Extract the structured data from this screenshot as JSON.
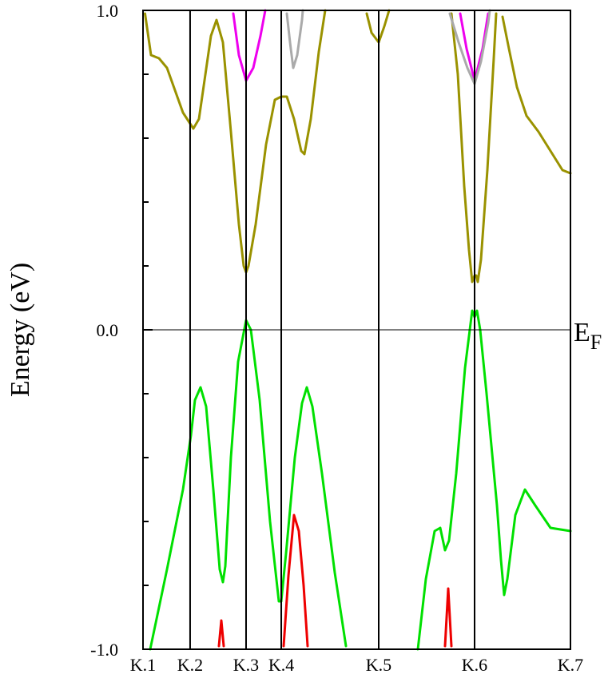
{
  "chart_data": {
    "type": "line",
    "ylabel": "Energy (eV)",
    "ylim": [
      -1.0,
      1.0
    ],
    "yticks": [
      "-1.0",
      "0.0",
      "1.0"
    ],
    "ytick_values": [
      -1.0,
      0.0,
      1.0
    ],
    "yminor_values": [
      -0.8,
      -0.6,
      -0.4,
      -0.2,
      0.2,
      0.4,
      0.6,
      0.8
    ],
    "xlim": [
      0,
      1
    ],
    "kpoints": [
      {
        "label": "K.1",
        "x": 0.0
      },
      {
        "label": "K.2",
        "x": 0.1102
      },
      {
        "label": "K.3",
        "x": 0.2411
      },
      {
        "label": "K.4",
        "x": 0.3234
      },
      {
        "label": "K.5",
        "x": 0.5514
      },
      {
        "label": "K.6",
        "x": 0.7757
      },
      {
        "label": "K.7",
        "x": 1.0
      }
    ],
    "fermi": {
      "label": "E",
      "subscript": "F",
      "value": 0.0
    },
    "colors": {
      "olive": "#9a9200",
      "magenta": "#ee00ee",
      "gray": "#aaaaaa",
      "green": "#00e000",
      "red": "#ee0000"
    },
    "series": [
      {
        "color_key": "olive",
        "points": [
          [
            0.0047,
            0.99
          ],
          [
            0.0187,
            0.86
          ],
          [
            0.0374,
            0.85
          ],
          [
            0.0561,
            0.82
          ],
          [
            0.0935,
            0.68
          ],
          [
            0.1178,
            0.63
          ],
          [
            0.1308,
            0.66
          ],
          [
            0.1589,
            0.92
          ],
          [
            0.172,
            0.97
          ],
          [
            0.1869,
            0.9
          ],
          [
            0.2056,
            0.62
          ],
          [
            0.2243,
            0.33
          ],
          [
            0.2355,
            0.2
          ],
          [
            0.2411,
            0.18
          ],
          [
            0.2467,
            0.2
          ],
          [
            0.2636,
            0.33
          ],
          [
            0.2879,
            0.58
          ],
          [
            0.3084,
            0.72
          ],
          [
            0.3234,
            0.73
          ],
          [
            0.3364,
            0.73
          ],
          [
            0.3533,
            0.66
          ],
          [
            0.3701,
            0.56
          ],
          [
            0.3776,
            0.55
          ],
          [
            0.3925,
            0.66
          ],
          [
            0.4112,
            0.87
          ],
          [
            0.4262,
            1.0
          ]
        ]
      },
      {
        "color_key": "olive",
        "points": [
          [
            0.5234,
            0.99
          ],
          [
            0.5346,
            0.93
          ],
          [
            0.5514,
            0.9
          ],
          [
            0.5645,
            0.95
          ],
          [
            0.5757,
            1.0
          ]
        ]
      },
      {
        "color_key": "olive",
        "points": [
          [
            0.7215,
            0.99
          ],
          [
            0.7364,
            0.8
          ],
          [
            0.7514,
            0.45
          ],
          [
            0.7626,
            0.25
          ],
          [
            0.7701,
            0.15
          ],
          [
            0.7757,
            0.17
          ],
          [
            0.7794,
            0.17
          ],
          [
            0.7832,
            0.15
          ],
          [
            0.7907,
            0.22
          ],
          [
            0.8056,
            0.5
          ],
          [
            0.8206,
            0.85
          ],
          [
            0.8262,
            0.99
          ]
        ]
      },
      {
        "color_key": "olive",
        "points": [
          [
            0.8411,
            0.98
          ],
          [
            0.8561,
            0.88
          ],
          [
            0.8748,
            0.76
          ],
          [
            0.8972,
            0.67
          ],
          [
            0.9252,
            0.62
          ],
          [
            0.9533,
            0.56
          ],
          [
            0.9813,
            0.5
          ],
          [
            1.0,
            0.49
          ]
        ]
      },
      {
        "color_key": "magenta",
        "points": [
          [
            0.2112,
            0.99
          ],
          [
            0.2243,
            0.86
          ],
          [
            0.2411,
            0.78
          ],
          [
            0.2579,
            0.82
          ],
          [
            0.2748,
            0.92
          ],
          [
            0.286,
            1.0
          ]
        ]
      },
      {
        "color_key": "magenta",
        "points": [
          [
            0.7421,
            0.99
          ],
          [
            0.757,
            0.88
          ],
          [
            0.7757,
            0.78
          ],
          [
            0.7944,
            0.88
          ],
          [
            0.8075,
            0.99
          ]
        ]
      },
      {
        "color_key": "gray",
        "points": [
          [
            0.3364,
            0.99
          ],
          [
            0.3439,
            0.9
          ],
          [
            0.3514,
            0.82
          ],
          [
            0.3607,
            0.86
          ],
          [
            0.372,
            0.97
          ],
          [
            0.3738,
            1.0
          ]
        ]
      },
      {
        "color_key": "gray",
        "points": [
          [
            0.7178,
            0.99
          ],
          [
            0.7383,
            0.9
          ],
          [
            0.7589,
            0.82
          ],
          [
            0.7757,
            0.77
          ],
          [
            0.7907,
            0.84
          ],
          [
            0.8075,
            0.96
          ],
          [
            0.8112,
            1.0
          ]
        ]
      },
      {
        "color_key": "green",
        "points": [
          [
            0.0168,
            -1.0
          ],
          [
            0.0561,
            -0.75
          ],
          [
            0.0935,
            -0.5
          ],
          [
            0.1121,
            -0.33
          ],
          [
            0.1215,
            -0.22
          ],
          [
            0.1346,
            -0.18
          ],
          [
            0.1477,
            -0.24
          ],
          [
            0.1645,
            -0.5
          ],
          [
            0.1795,
            -0.75
          ],
          [
            0.1869,
            -0.79
          ],
          [
            0.1925,
            -0.74
          ],
          [
            0.2056,
            -0.4
          ],
          [
            0.2224,
            -0.1
          ],
          [
            0.2411,
            0.03
          ],
          [
            0.2523,
            0.0
          ],
          [
            0.2729,
            -0.22
          ],
          [
            0.2972,
            -0.6
          ],
          [
            0.3178,
            -0.85
          ],
          [
            0.3234,
            -0.85
          ],
          [
            0.3346,
            -0.7
          ],
          [
            0.3551,
            -0.4
          ],
          [
            0.372,
            -0.23
          ],
          [
            0.3832,
            -0.18
          ],
          [
            0.3963,
            -0.24
          ],
          [
            0.4187,
            -0.45
          ],
          [
            0.4486,
            -0.76
          ],
          [
            0.4748,
            -0.99
          ]
        ]
      },
      {
        "color_key": "green",
        "points": [
          [
            0.643,
            -1.0
          ],
          [
            0.6617,
            -0.78
          ],
          [
            0.6822,
            -0.63
          ],
          [
            0.6953,
            -0.62
          ],
          [
            0.7065,
            -0.69
          ],
          [
            0.7159,
            -0.66
          ],
          [
            0.7327,
            -0.45
          ],
          [
            0.7533,
            -0.12
          ],
          [
            0.7701,
            0.06
          ],
          [
            0.7757,
            0.04
          ],
          [
            0.7813,
            0.06
          ],
          [
            0.7888,
            0.0
          ],
          [
            0.8037,
            -0.2
          ],
          [
            0.828,
            -0.55
          ],
          [
            0.8374,
            -0.72
          ],
          [
            0.8449,
            -0.83
          ],
          [
            0.8523,
            -0.78
          ],
          [
            0.871,
            -0.58
          ],
          [
            0.8935,
            -0.5
          ],
          [
            0.9178,
            -0.55
          ],
          [
            0.9533,
            -0.62
          ],
          [
            1.0,
            -0.63
          ]
        ]
      },
      {
        "color_key": "red",
        "points": [
          [
            0.1776,
            -0.99
          ],
          [
            0.1832,
            -0.91
          ],
          [
            0.1888,
            -0.99
          ]
        ]
      },
      {
        "color_key": "red",
        "points": [
          [
            0.329,
            -0.99
          ],
          [
            0.3402,
            -0.77
          ],
          [
            0.3533,
            -0.58
          ],
          [
            0.3645,
            -0.63
          ],
          [
            0.3757,
            -0.8
          ],
          [
            0.385,
            -0.99
          ]
        ]
      },
      {
        "color_key": "red",
        "points": [
          [
            0.7065,
            -0.99
          ],
          [
            0.714,
            -0.81
          ],
          [
            0.7215,
            -0.99
          ]
        ]
      }
    ]
  }
}
